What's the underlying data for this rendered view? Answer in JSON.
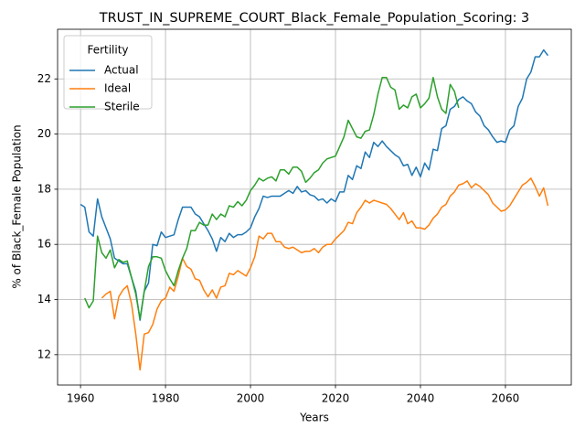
{
  "chart_data": {
    "type": "line",
    "title": "TRUST_IN_SUPREME_COURT_Black_Female_Population_Scoring: 3",
    "x_label": "Years",
    "y_label": "% of Black_Female Population",
    "legend_title": "Fertility",
    "legend_position": "upper left",
    "grid": true,
    "x": [
      1960,
      1961,
      1962,
      1963,
      1964,
      1965,
      1966,
      1967,
      1968,
      1969,
      1970,
      1971,
      1972,
      1973,
      1974,
      1975,
      1976,
      1977,
      1978,
      1979,
      1980,
      1981,
      1982,
      1983,
      1984,
      1985,
      1986,
      1987,
      1988,
      1989,
      1990,
      1991,
      1992,
      1993,
      1994,
      1995,
      1996,
      1997,
      1998,
      1999,
      2000,
      2001,
      2002,
      2003,
      2004,
      2005,
      2006,
      2007,
      2008,
      2009,
      2010,
      2011,
      2012,
      2013,
      2014,
      2015,
      2016,
      2017,
      2018,
      2019,
      2020,
      2021,
      2022,
      2023,
      2024,
      2025,
      2026,
      2027,
      2028,
      2029,
      2030,
      2031,
      2032,
      2033,
      2034,
      2035,
      2036,
      2037,
      2038,
      2039,
      2040,
      2041,
      2042,
      2043,
      2044,
      2045,
      2046,
      2047,
      2048,
      2049,
      2050,
      2051,
      2052,
      2053,
      2054,
      2055,
      2056,
      2057,
      2058,
      2059,
      2060,
      2061,
      2062,
      2063,
      2064,
      2065,
      2066,
      2067,
      2068,
      2069,
      2070
    ],
    "series": [
      {
        "name": "Actual",
        "color": "#1f77b4",
        "values": [
          17.45,
          17.35,
          16.45,
          16.3,
          17.65,
          17.0,
          16.6,
          16.2,
          15.5,
          15.4,
          15.3,
          15.3,
          14.8,
          14.3,
          13.25,
          14.3,
          14.6,
          16.0,
          15.95,
          16.45,
          16.25,
          16.3,
          16.35,
          16.9,
          17.35,
          17.35,
          17.35,
          17.1,
          17.0,
          16.75,
          16.5,
          16.2,
          15.75,
          16.25,
          16.1,
          16.4,
          16.25,
          16.35,
          16.35,
          16.45,
          16.6,
          17.0,
          17.3,
          17.75,
          17.7,
          17.75,
          17.75,
          17.75,
          17.85,
          17.95,
          17.85,
          18.1,
          17.9,
          17.95,
          17.8,
          17.75,
          17.6,
          17.65,
          17.5,
          17.65,
          17.55,
          17.9,
          17.9,
          18.5,
          18.35,
          18.85,
          18.75,
          19.35,
          19.15,
          19.7,
          19.55,
          19.75,
          19.55,
          19.4,
          19.25,
          19.15,
          18.85,
          18.9,
          18.5,
          18.8,
          18.45,
          18.95,
          18.7,
          19.45,
          19.4,
          20.2,
          20.3,
          20.9,
          21.0,
          21.25,
          21.35,
          21.2,
          21.1,
          20.8,
          20.65,
          20.3,
          20.15,
          19.9,
          19.7,
          19.75,
          19.7,
          20.15,
          20.3,
          21.0,
          21.3,
          22.0,
          22.25,
          22.8,
          22.8,
          23.05,
          22.85
        ]
      },
      {
        "name": "Ideal",
        "color": "#ff7f0e",
        "values": [
          null,
          null,
          null,
          null,
          null,
          14.05,
          14.2,
          14.3,
          13.3,
          14.1,
          14.35,
          14.5,
          13.85,
          12.75,
          11.45,
          12.75,
          12.8,
          13.1,
          13.65,
          13.95,
          14.05,
          14.45,
          14.3,
          14.85,
          15.5,
          15.2,
          15.1,
          14.75,
          14.7,
          14.35,
          14.1,
          14.35,
          14.05,
          14.45,
          14.5,
          14.95,
          14.9,
          15.05,
          14.95,
          14.85,
          15.15,
          15.55,
          16.3,
          16.2,
          16.4,
          16.4,
          16.1,
          16.1,
          15.9,
          15.85,
          15.9,
          15.8,
          15.7,
          15.75,
          15.75,
          15.85,
          15.7,
          15.9,
          16.0,
          16.0,
          16.2,
          16.35,
          16.5,
          16.8,
          16.75,
          17.15,
          17.35,
          17.6,
          17.5,
          17.6,
          17.55,
          17.5,
          17.45,
          17.3,
          17.1,
          16.9,
          17.15,
          16.75,
          16.85,
          16.6,
          16.6,
          16.55,
          16.7,
          16.95,
          17.1,
          17.35,
          17.45,
          17.75,
          17.9,
          18.15,
          18.2,
          18.3,
          18.05,
          18.2,
          18.1,
          17.95,
          17.8,
          17.5,
          17.35,
          17.2,
          17.25,
          17.4,
          17.65,
          17.9,
          18.15,
          18.25,
          18.4,
          18.1,
          17.75,
          18.05,
          17.4
        ]
      },
      {
        "name": "Sterile",
        "color": "#2ca02c",
        "values": [
          null,
          14.05,
          13.7,
          13.95,
          16.3,
          15.7,
          15.5,
          15.8,
          15.15,
          15.45,
          15.35,
          15.4,
          14.8,
          14.2,
          13.3,
          14.3,
          15.2,
          15.55,
          15.55,
          15.5,
          15.05,
          14.75,
          14.5,
          15.05,
          15.5,
          15.85,
          16.5,
          16.5,
          16.8,
          16.7,
          16.7,
          17.1,
          16.9,
          17.1,
          17.0,
          17.4,
          17.35,
          17.55,
          17.4,
          17.6,
          17.95,
          18.15,
          18.4,
          18.3,
          18.4,
          18.45,
          18.3,
          18.7,
          18.7,
          18.55,
          18.8,
          18.8,
          18.65,
          18.25,
          18.4,
          18.6,
          18.7,
          18.95,
          19.1,
          19.15,
          19.2,
          19.55,
          19.9,
          20.5,
          20.2,
          19.9,
          19.85,
          20.1,
          20.15,
          20.7,
          21.45,
          22.05,
          22.05,
          21.7,
          21.6,
          20.9,
          21.05,
          20.95,
          21.35,
          21.45,
          20.95,
          21.1,
          21.3,
          22.05,
          21.35,
          20.9,
          20.75,
          21.8,
          21.55,
          20.95,
          null,
          null,
          null,
          null,
          null,
          null,
          null,
          null,
          null,
          null,
          null,
          null,
          null,
          null,
          null,
          null,
          null,
          null,
          null,
          null,
          null
        ]
      }
    ],
    "xlim": [
      1954.6,
      2075.5
    ],
    "xticks": [
      1960,
      1980,
      2000,
      2020,
      2040,
      2060
    ],
    "ylim": [
      10.9,
      23.8
    ],
    "yticks": [
      12,
      14,
      16,
      18,
      20,
      22
    ]
  }
}
